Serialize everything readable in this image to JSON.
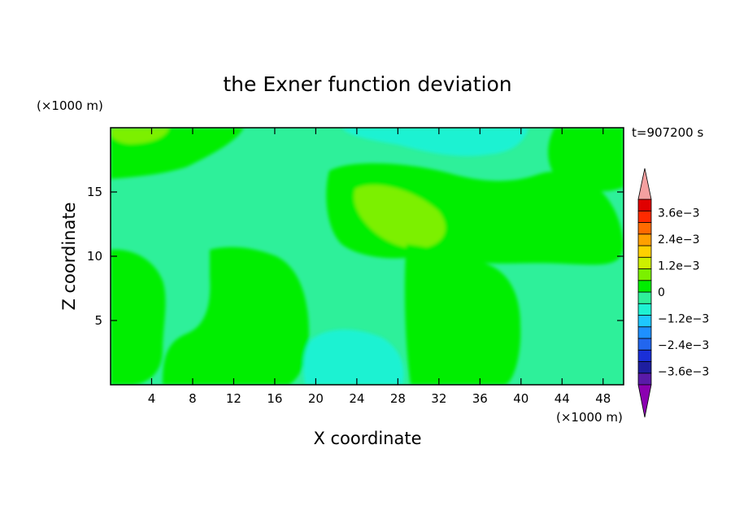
{
  "chart_data": {
    "type": "heatmap",
    "title": "the Exner function deviation",
    "xlabel": "X coordinate",
    "ylabel": "Z coordinate",
    "x_unit": "(×1000 m)",
    "y_unit": "(×1000 m)",
    "time_label": "t=907200 s",
    "xlim": [
      0,
      50
    ],
    "ylim": [
      0,
      20
    ],
    "x_ticks": [
      4,
      8,
      12,
      16,
      20,
      24,
      28,
      32,
      36,
      40,
      44,
      48
    ],
    "y_ticks": [
      5,
      10,
      15
    ],
    "colorbar": {
      "levels": [
        -0.0042,
        -0.0036,
        -0.003,
        -0.0024,
        -0.0018,
        -0.0012,
        -0.0006,
        0,
        0.0006,
        0.0012,
        0.0018,
        0.0024,
        0.003,
        0.0036,
        0.0042
      ],
      "labels": [
        "3.6e−3",
        "2.4e−3",
        "1.2e−3",
        "0",
        "−1.2e−3",
        "−2.4e−3",
        "−3.6e−3"
      ],
      "label_values": [
        0.0036,
        0.0024,
        0.0012,
        0,
        -0.0012,
        -0.0024,
        -0.0036
      ],
      "colors_low_to_high": [
        "#5a1aa8",
        "#1e1ea0",
        "#1a2fd8",
        "#2266ee",
        "#1e90ff",
        "#1ec8ff",
        "#1ef2d2",
        "#2ef09a",
        "#00ee00",
        "#7bf000",
        "#cdf000",
        "#ffd000",
        "#ffa000",
        "#ff6a00",
        "#ff2a00",
        "#e00000"
      ],
      "under_color": "#8b00b0",
      "over_color": "#f4a0a0"
    },
    "regions": [
      {
        "id": "base-field",
        "value": 0.0003
      },
      {
        "id": "upper-band",
        "value": 0.0009,
        "x_range": [
          0,
          12
        ],
        "z_range": [
          16.2,
          20
        ]
      },
      {
        "id": "upper-left-peak",
        "value": 0.0015,
        "x_range": [
          0.3,
          5.5
        ],
        "z_range": [
          18.8,
          20
        ]
      },
      {
        "id": "top-trough",
        "value": -0.0003,
        "x_range": [
          18,
          41
        ],
        "z_range": [
          17.5,
          20
        ]
      },
      {
        "id": "center-high",
        "value": 0.0009,
        "x_range": [
          22,
          40
        ],
        "z_range": [
          9.5,
          17.5
        ]
      },
      {
        "id": "center-peak",
        "value": 0.0015,
        "x_range": [
          24,
          33
        ],
        "z_range": [
          10.5,
          15.5
        ]
      },
      {
        "id": "lower-middle-high",
        "value": 0.0009,
        "x_range": [
          28,
          40
        ],
        "z_range": [
          0,
          10
        ]
      },
      {
        "id": "left-column-high",
        "value": 0.0009,
        "x_range": [
          0,
          5
        ],
        "z_range": [
          0,
          10
        ]
      },
      {
        "id": "left-mid-high",
        "value": 0.0009,
        "x_range": [
          9.5,
          18
        ],
        "z_range": [
          0,
          10.3
        ]
      },
      {
        "id": "right-high",
        "value": 0.0009,
        "x_range": [
          42,
          50
        ],
        "z_range": [
          13,
          20
        ]
      },
      {
        "id": "bottom-trough",
        "value": -0.0003,
        "x_range": [
          18,
          28
        ],
        "z_range": [
          0,
          4.5
        ]
      }
    ]
  }
}
